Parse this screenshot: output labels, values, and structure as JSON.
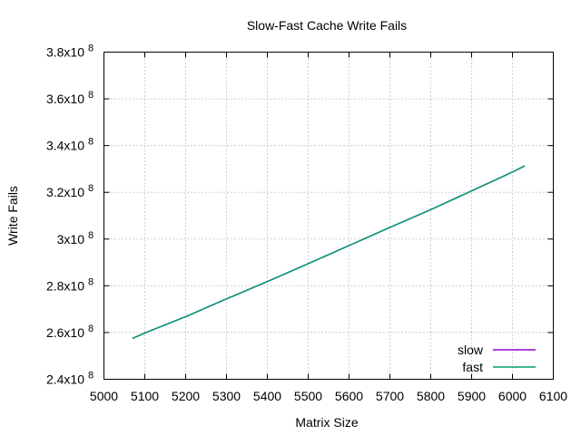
{
  "chart_data": {
    "type": "line",
    "title": "Slow-Fast Cache Write Fails",
    "xlabel": "Matrix Size",
    "ylabel": "Write Fails",
    "xlim": [
      5000,
      6100
    ],
    "ylim": [
      240000000,
      380000000
    ],
    "x_ticks": [
      {
        "value": 5000,
        "label": "5000"
      },
      {
        "value": 5100,
        "label": "5100"
      },
      {
        "value": 5200,
        "label": "5200"
      },
      {
        "value": 5300,
        "label": "5300"
      },
      {
        "value": 5400,
        "label": "5400"
      },
      {
        "value": 5500,
        "label": "5500"
      },
      {
        "value": 5600,
        "label": "5600"
      },
      {
        "value": 5700,
        "label": "5700"
      },
      {
        "value": 5800,
        "label": "5800"
      },
      {
        "value": 5900,
        "label": "5900"
      },
      {
        "value": 6000,
        "label": "6000"
      },
      {
        "value": 6100,
        "label": "6100"
      }
    ],
    "y_ticks": [
      {
        "value": 240000000,
        "mantissa": "2.4x10",
        "exp": "8"
      },
      {
        "value": 260000000,
        "mantissa": "2.6x10",
        "exp": "8"
      },
      {
        "value": 280000000,
        "mantissa": "2.8x10",
        "exp": "8"
      },
      {
        "value": 300000000,
        "mantissa": "3x10",
        "exp": "8"
      },
      {
        "value": 320000000,
        "mantissa": "3.2x10",
        "exp": "8"
      },
      {
        "value": 340000000,
        "mantissa": "3.4x10",
        "exp": "8"
      },
      {
        "value": 360000000,
        "mantissa": "3.6x10",
        "exp": "8"
      },
      {
        "value": 380000000,
        "mantissa": "3.8x10",
        "exp": "8"
      }
    ],
    "grid": true,
    "legend_position": "bottom-right",
    "series": [
      {
        "name": "slow",
        "color": "#9400d3",
        "x": [
          5070,
          5100,
          5200,
          5300,
          5400,
          5500,
          5600,
          5700,
          5800,
          5900,
          6000,
          6030
        ],
        "y": [
          257500000,
          259800000,
          266800000,
          274400000,
          281800000,
          289500000,
          297200000,
          305000000,
          312600000,
          320600000,
          328700000,
          331300000
        ]
      },
      {
        "name": "fast",
        "color": "#009e73",
        "x": [
          5070,
          5100,
          5200,
          5300,
          5400,
          5500,
          5600,
          5700,
          5800,
          5900,
          6000,
          6030
        ],
        "y": [
          257500000,
          259800000,
          266800000,
          274400000,
          281800000,
          289500000,
          297200000,
          305000000,
          312600000,
          320600000,
          328700000,
          331300000
        ]
      }
    ]
  }
}
